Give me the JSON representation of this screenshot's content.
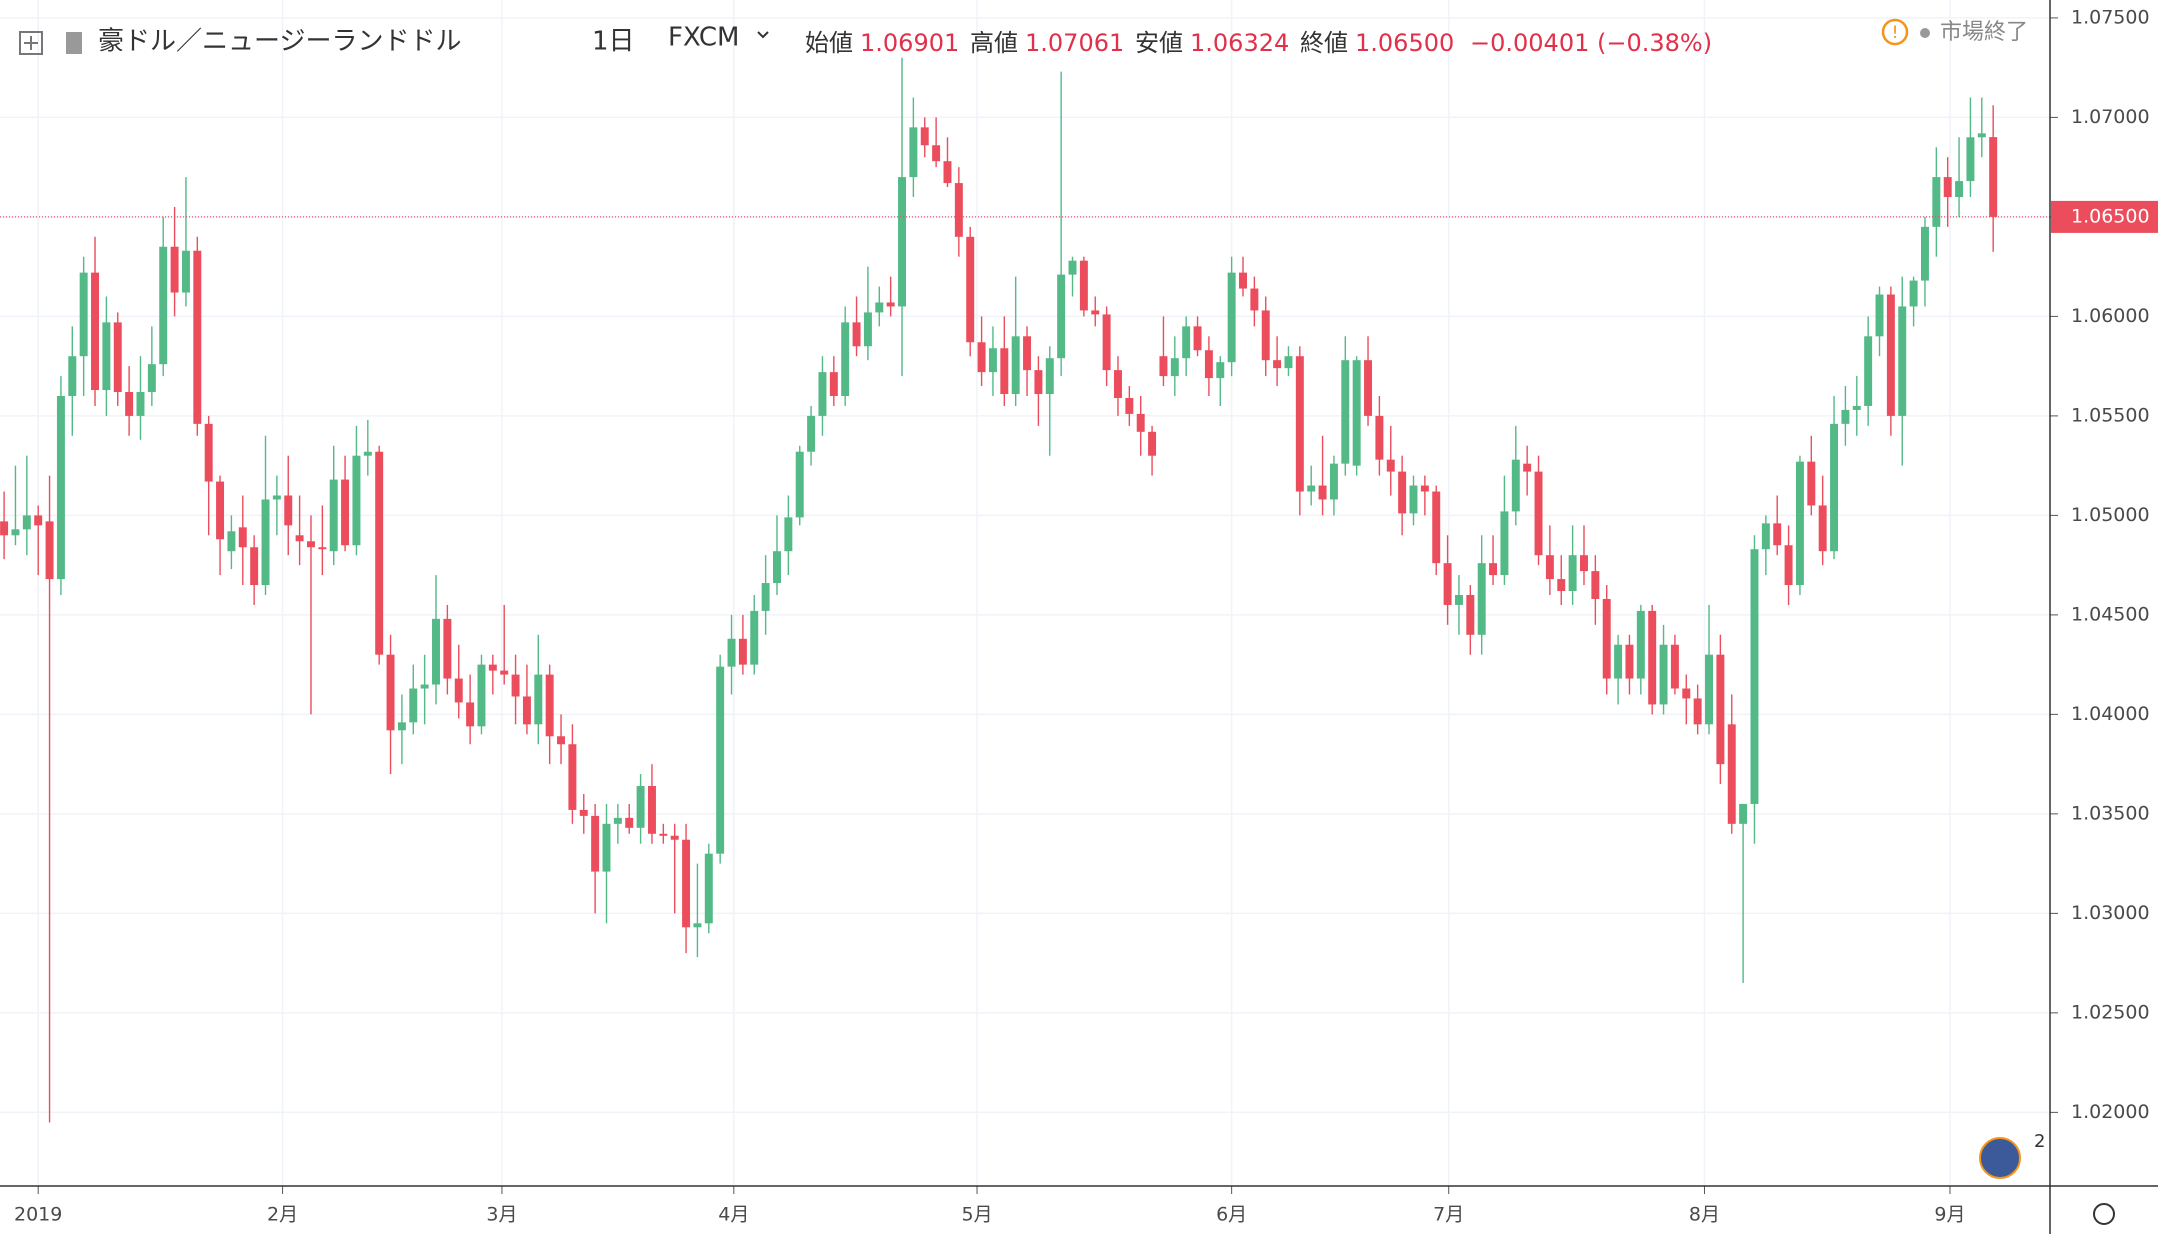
{
  "header": {
    "symbol": "豪ドル／ニュージーランドドル",
    "interval": "1日",
    "source": "FXCM",
    "ohlc": [
      {
        "label": "始値",
        "value": "1.06901"
      },
      {
        "label": "高値",
        "value": "1.07061"
      },
      {
        "label": "安値",
        "value": "1.06324"
      },
      {
        "label": "終値",
        "value": "1.06500"
      }
    ],
    "change": "−0.00401 (−0.38%)",
    "status": "市場終了",
    "badge": "2"
  },
  "chart_data": {
    "type": "candlestick",
    "up_color": "#53b987",
    "down_color": "#eb4d5c",
    "grid": true,
    "ylim": [
      1.0163,
      1.0759
    ],
    "yticks": [
      {
        "value": 1.02,
        "label": "1.02000"
      },
      {
        "value": 1.025,
        "label": "1.02500"
      },
      {
        "value": 1.03,
        "label": "1.03000"
      },
      {
        "value": 1.035,
        "label": "1.03500"
      },
      {
        "value": 1.04,
        "label": "1.04000"
      },
      {
        "value": 1.045,
        "label": "1.04500"
      },
      {
        "value": 1.05,
        "label": "1.05000"
      },
      {
        "value": 1.055,
        "label": "1.05500"
      },
      {
        "value": 1.06,
        "label": "1.06000"
      },
      {
        "value": 1.065,
        "label": "1.06500"
      },
      {
        "value": 1.07,
        "label": "1.07000"
      },
      {
        "value": 1.075,
        "label": "1.07500"
      }
    ],
    "xlim": [
      -0.36,
      180
    ],
    "xticks": [
      {
        "value": 3,
        "label": "2019"
      },
      {
        "value": 24.5,
        "label": "2月"
      },
      {
        "value": 43.8,
        "label": "3月"
      },
      {
        "value": 64.2,
        "label": "4月"
      },
      {
        "value": 85.6,
        "label": "5月"
      },
      {
        "value": 108,
        "label": "6月"
      },
      {
        "value": 127.1,
        "label": "7月"
      },
      {
        "value": 149.6,
        "label": "8月"
      },
      {
        "value": 171.2,
        "label": "9月"
      }
    ],
    "last_price": {
      "value": 1.065,
      "label": "1.06500"
    },
    "ohlc": [
      [
        1.0497,
        1.0512,
        1.0478,
        1.049
      ],
      [
        1.049,
        1.0525,
        1.0485,
        1.0493
      ],
      [
        1.0493,
        1.053,
        1.048,
        1.05
      ],
      [
        1.05,
        1.0505,
        1.047,
        1.0495
      ],
      [
        1.0497,
        1.052,
        1.0195,
        1.0468
      ],
      [
        1.0468,
        1.057,
        1.046,
        1.056
      ],
      [
        1.056,
        1.0595,
        1.054,
        1.058
      ],
      [
        1.058,
        1.063,
        1.056,
        1.0622
      ],
      [
        1.0622,
        1.064,
        1.0555,
        1.0563
      ],
      [
        1.0563,
        1.061,
        1.055,
        1.0597
      ],
      [
        1.0597,
        1.0602,
        1.0555,
        1.0562
      ],
      [
        1.0562,
        1.0575,
        1.054,
        1.055
      ],
      [
        1.055,
        1.058,
        1.0538,
        1.0562
      ],
      [
        1.0562,
        1.0595,
        1.0555,
        1.0576
      ],
      [
        1.0576,
        1.065,
        1.057,
        1.0635
      ],
      [
        1.0635,
        1.0655,
        1.06,
        1.0612
      ],
      [
        1.0612,
        1.067,
        1.0605,
        1.0633
      ],
      [
        1.0633,
        1.064,
        1.054,
        1.0546
      ],
      [
        1.0546,
        1.055,
        1.049,
        1.0517
      ],
      [
        1.0517,
        1.052,
        1.047,
        1.0488
      ],
      [
        1.0482,
        1.05,
        1.0473,
        1.0492
      ],
      [
        1.0494,
        1.051,
        1.0465,
        1.0484
      ],
      [
        1.0484,
        1.049,
        1.0455,
        1.0465
      ],
      [
        1.0465,
        1.054,
        1.046,
        1.0508
      ],
      [
        1.0508,
        1.052,
        1.049,
        1.051
      ],
      [
        1.051,
        1.053,
        1.048,
        1.0495
      ],
      [
        1.049,
        1.051,
        1.0475,
        1.0487
      ],
      [
        1.0487,
        1.05,
        1.04,
        1.0484
      ],
      [
        1.0484,
        1.0505,
        1.047,
        1.0483
      ],
      [
        1.0482,
        1.0535,
        1.0475,
        1.0518
      ],
      [
        1.0518,
        1.053,
        1.0482,
        1.0485
      ],
      [
        1.0485,
        1.0545,
        1.048,
        1.053
      ],
      [
        1.053,
        1.0548,
        1.052,
        1.0532
      ],
      [
        1.0532,
        1.0535,
        1.0425,
        1.043
      ],
      [
        1.043,
        1.044,
        1.037,
        1.0392
      ],
      [
        1.0392,
        1.041,
        1.0375,
        1.0396
      ],
      [
        1.0396,
        1.0425,
        1.039,
        1.0413
      ],
      [
        1.0413,
        1.043,
        1.0395,
        1.0415
      ],
      [
        1.0415,
        1.047,
        1.0405,
        1.0448
      ],
      [
        1.0448,
        1.0455,
        1.041,
        1.0418
      ],
      [
        1.0418,
        1.0435,
        1.0398,
        1.0406
      ],
      [
        1.0406,
        1.042,
        1.0385,
        1.0394
      ],
      [
        1.0394,
        1.043,
        1.039,
        1.0425
      ],
      [
        1.0425,
        1.043,
        1.041,
        1.0422
      ],
      [
        1.0422,
        1.0455,
        1.0415,
        1.042
      ],
      [
        1.042,
        1.043,
        1.0395,
        1.0409
      ],
      [
        1.0409,
        1.0425,
        1.039,
        1.0395
      ],
      [
        1.0395,
        1.044,
        1.0385,
        1.042
      ],
      [
        1.042,
        1.0425,
        1.0375,
        1.0389
      ],
      [
        1.0389,
        1.04,
        1.0375,
        1.0385
      ],
      [
        1.0385,
        1.0395,
        1.0345,
        1.0352
      ],
      [
        1.0352,
        1.036,
        1.034,
        1.0349
      ],
      [
        1.0349,
        1.0355,
        1.03,
        1.0321
      ],
      [
        1.0321,
        1.0355,
        1.0295,
        1.0345
      ],
      [
        1.0345,
        1.0355,
        1.0335,
        1.0348
      ],
      [
        1.0348,
        1.0355,
        1.034,
        1.0343
      ],
      [
        1.0343,
        1.037,
        1.0335,
        1.0364
      ],
      [
        1.0364,
        1.0375,
        1.0335,
        1.034
      ],
      [
        1.034,
        1.0345,
        1.0335,
        1.0339
      ],
      [
        1.0339,
        1.0345,
        1.03,
        1.0337
      ],
      [
        1.0337,
        1.0345,
        1.028,
        1.0293
      ],
      [
        1.0293,
        1.0325,
        1.0278,
        1.0295
      ],
      [
        1.0295,
        1.0335,
        1.029,
        1.033
      ],
      [
        1.033,
        1.043,
        1.0325,
        1.0424
      ],
      [
        1.0424,
        1.045,
        1.041,
        1.0438
      ],
      [
        1.0438,
        1.045,
        1.042,
        1.0425
      ],
      [
        1.0425,
        1.046,
        1.042,
        1.0452
      ],
      [
        1.0452,
        1.048,
        1.044,
        1.0466
      ],
      [
        1.0466,
        1.05,
        1.046,
        1.0482
      ],
      [
        1.0482,
        1.051,
        1.047,
        1.0499
      ],
      [
        1.0499,
        1.0535,
        1.0495,
        1.0532
      ],
      [
        1.0532,
        1.0555,
        1.0525,
        1.055
      ],
      [
        1.055,
        1.058,
        1.054,
        1.0572
      ],
      [
        1.0572,
        1.058,
        1.0555,
        1.056
      ],
      [
        1.056,
        1.0605,
        1.0555,
        1.0597
      ],
      [
        1.0597,
        1.061,
        1.058,
        1.0585
      ],
      [
        1.0585,
        1.0625,
        1.0578,
        1.0602
      ],
      [
        1.0602,
        1.0615,
        1.0595,
        1.0607
      ],
      [
        1.0607,
        1.062,
        1.06,
        1.0605
      ],
      [
        1.0605,
        1.073,
        1.057,
        1.067
      ],
      [
        1.067,
        1.071,
        1.066,
        1.0695
      ],
      [
        1.0695,
        1.07,
        1.068,
        1.0686
      ],
      [
        1.0686,
        1.07,
        1.0675,
        1.0678
      ],
      [
        1.0678,
        1.069,
        1.0665,
        1.0667
      ],
      [
        1.0667,
        1.0675,
        1.063,
        1.064
      ],
      [
        1.064,
        1.0645,
        1.058,
        1.0587
      ],
      [
        1.0587,
        1.06,
        1.0565,
        1.0572
      ],
      [
        1.0572,
        1.0595,
        1.056,
        1.0584
      ],
      [
        1.0584,
        1.06,
        1.0555,
        1.0561
      ],
      [
        1.0561,
        1.062,
        1.0555,
        1.059
      ],
      [
        1.059,
        1.0595,
        1.056,
        1.0573
      ],
      [
        1.0573,
        1.058,
        1.0545,
        1.0561
      ],
      [
        1.0561,
        1.0585,
        1.053,
        1.0579
      ],
      [
        1.0579,
        1.0723,
        1.057,
        1.0621
      ],
      [
        1.0621,
        1.063,
        1.061,
        1.0628
      ],
      [
        1.0628,
        1.063,
        1.06,
        1.0603
      ],
      [
        1.0603,
        1.061,
        1.0595,
        1.0601
      ],
      [
        1.0601,
        1.0605,
        1.0565,
        1.0573
      ],
      [
        1.0573,
        1.058,
        1.055,
        1.0559
      ],
      [
        1.0559,
        1.0565,
        1.0545,
        1.0551
      ],
      [
        1.0551,
        1.056,
        1.053,
        1.0542
      ],
      [
        1.0542,
        1.0545,
        1.052,
        1.053
      ],
      [
        1.058,
        1.06,
        1.0565,
        1.057
      ],
      [
        1.057,
        1.059,
        1.056,
        1.0579
      ],
      [
        1.0579,
        1.06,
        1.057,
        1.0595
      ],
      [
        1.0595,
        1.06,
        1.058,
        1.0583
      ],
      [
        1.0583,
        1.059,
        1.056,
        1.0569
      ],
      [
        1.0569,
        1.058,
        1.0555,
        1.0577
      ],
      [
        1.0577,
        1.063,
        1.057,
        1.0622
      ],
      [
        1.0622,
        1.063,
        1.061,
        1.0614
      ],
      [
        1.0614,
        1.062,
        1.0595,
        1.0603
      ],
      [
        1.0603,
        1.061,
        1.057,
        1.0578
      ],
      [
        1.0578,
        1.059,
        1.0565,
        1.0574
      ],
      [
        1.0574,
        1.0585,
        1.057,
        1.058
      ],
      [
        1.058,
        1.0585,
        1.05,
        1.0512
      ],
      [
        1.0512,
        1.0525,
        1.0505,
        1.0515
      ],
      [
        1.0515,
        1.054,
        1.05,
        1.0508
      ],
      [
        1.0508,
        1.053,
        1.05,
        1.0526
      ],
      [
        1.0526,
        1.059,
        1.052,
        1.0578
      ],
      [
        1.0525,
        1.058,
        1.052,
        1.0578
      ],
      [
        1.0578,
        1.059,
        1.0545,
        1.055
      ],
      [
        1.055,
        1.056,
        1.052,
        1.0528
      ],
      [
        1.0528,
        1.0545,
        1.051,
        1.0522
      ],
      [
        1.0522,
        1.053,
        1.049,
        1.0501
      ],
      [
        1.0501,
        1.052,
        1.0495,
        1.0515
      ],
      [
        1.0515,
        1.052,
        1.05,
        1.0512
      ],
      [
        1.0512,
        1.0515,
        1.047,
        1.0476
      ],
      [
        1.0476,
        1.049,
        1.0445,
        1.0455
      ],
      [
        1.0455,
        1.047,
        1.044,
        1.046
      ],
      [
        1.046,
        1.0465,
        1.043,
        1.044
      ],
      [
        1.044,
        1.049,
        1.043,
        1.0476
      ],
      [
        1.0476,
        1.049,
        1.0465,
        1.047
      ],
      [
        1.047,
        1.052,
        1.0465,
        1.0502
      ],
      [
        1.0502,
        1.0545,
        1.0495,
        1.0528
      ],
      [
        1.0526,
        1.0535,
        1.051,
        1.0522
      ],
      [
        1.0522,
        1.053,
        1.0475,
        1.048
      ],
      [
        1.048,
        1.0495,
        1.046,
        1.0468
      ],
      [
        1.0468,
        1.048,
        1.0455,
        1.0462
      ],
      [
        1.0462,
        1.0495,
        1.0455,
        1.048
      ],
      [
        1.048,
        1.0495,
        1.0465,
        1.0472
      ],
      [
        1.0472,
        1.048,
        1.0445,
        1.0458
      ],
      [
        1.0458,
        1.0465,
        1.041,
        1.0418
      ],
      [
        1.0418,
        1.044,
        1.0405,
        1.0435
      ],
      [
        1.0435,
        1.044,
        1.041,
        1.0418
      ],
      [
        1.0418,
        1.0455,
        1.041,
        1.0452
      ],
      [
        1.0452,
        1.0455,
        1.04,
        1.0405
      ],
      [
        1.0405,
        1.0445,
        1.04,
        1.0435
      ],
      [
        1.0435,
        1.044,
        1.041,
        1.0413
      ],
      [
        1.0413,
        1.042,
        1.0395,
        1.0408
      ],
      [
        1.0408,
        1.0415,
        1.039,
        1.0395
      ],
      [
        1.0395,
        1.0455,
        1.039,
        1.043
      ],
      [
        1.043,
        1.044,
        1.0365,
        1.0375
      ],
      [
        1.0395,
        1.041,
        1.034,
        1.0345
      ],
      [
        1.0345,
        1.0355,
        1.0265,
        1.0355
      ],
      [
        1.0355,
        1.049,
        1.0335,
        1.0483
      ],
      [
        1.0483,
        1.05,
        1.047,
        1.0496
      ],
      [
        1.0496,
        1.051,
        1.048,
        1.0485
      ],
      [
        1.0485,
        1.0495,
        1.0455,
        1.0465
      ],
      [
        1.0465,
        1.053,
        1.046,
        1.0527
      ],
      [
        1.0527,
        1.054,
        1.05,
        1.0505
      ],
      [
        1.0505,
        1.052,
        1.0475,
        1.0482
      ],
      [
        1.0482,
        1.056,
        1.0478,
        1.0546
      ],
      [
        1.0546,
        1.0565,
        1.0535,
        1.0553
      ],
      [
        1.0553,
        1.057,
        1.054,
        1.0555
      ],
      [
        1.0555,
        1.06,
        1.0545,
        1.059
      ],
      [
        1.059,
        1.0615,
        1.058,
        1.0611
      ],
      [
        1.0611,
        1.0615,
        1.054,
        1.055
      ],
      [
        1.055,
        1.062,
        1.0525,
        1.0605
      ],
      [
        1.0605,
        1.062,
        1.0595,
        1.0618
      ],
      [
        1.0618,
        1.065,
        1.0605,
        1.0645
      ],
      [
        1.0645,
        1.0685,
        1.063,
        1.067
      ],
      [
        1.067,
        1.068,
        1.0645,
        1.066
      ],
      [
        1.066,
        1.069,
        1.065,
        1.0668
      ],
      [
        1.0668,
        1.071,
        1.066,
        1.069
      ],
      [
        1.069,
        1.071,
        1.068,
        1.0692
      ],
      [
        1.06901,
        1.07061,
        1.06324,
        1.065
      ]
    ]
  }
}
